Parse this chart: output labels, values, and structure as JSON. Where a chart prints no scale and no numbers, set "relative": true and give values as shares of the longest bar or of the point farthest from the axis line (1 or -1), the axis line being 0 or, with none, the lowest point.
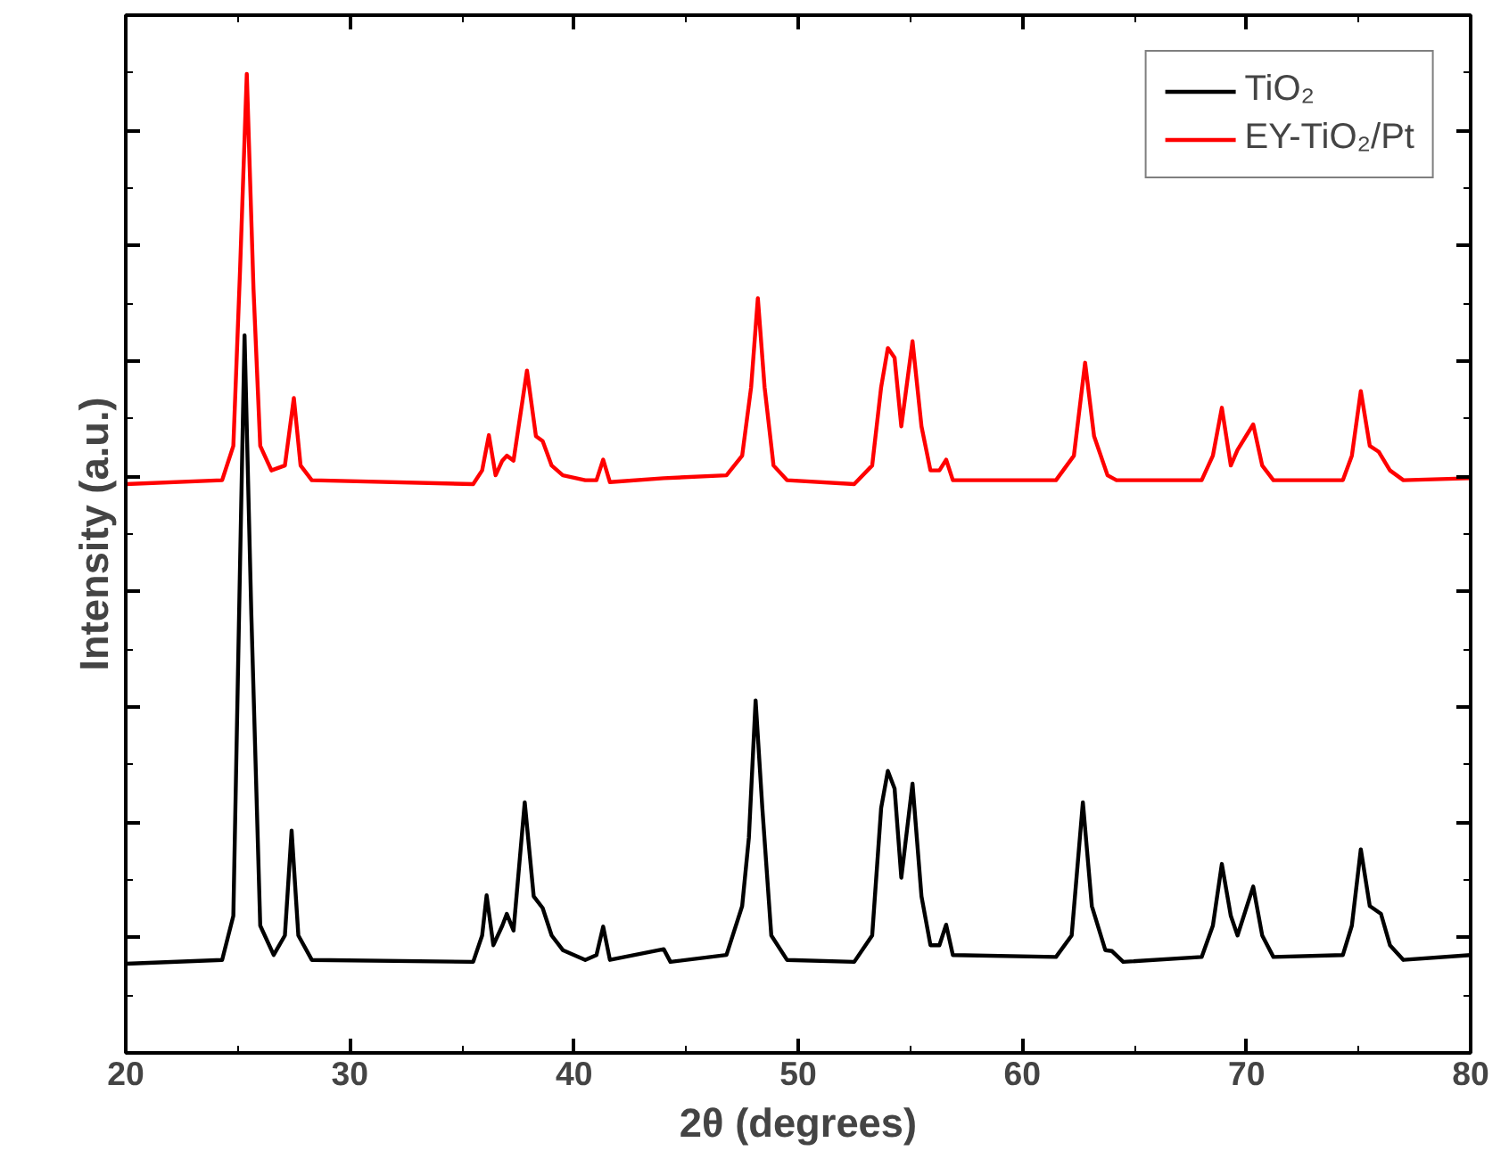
{
  "chart_data": {
    "type": "line",
    "relative": true,
    "xlabel": "2θ (degrees)",
    "ylabel": "Intensity (a.u.)",
    "xlim": [
      20,
      80
    ],
    "xticks": [
      20,
      30,
      40,
      50,
      60,
      70,
      80
    ],
    "tick_labels": "x",
    "grid": false,
    "legend": "top right",
    "marker": "none",
    "line_style": "solid",
    "series": [
      {
        "name": "TiO₂",
        "color": "#000000",
        "x": [
          20,
          24.3,
          24.8,
          25.1,
          25.3,
          25.6,
          26.0,
          26.6,
          27.1,
          27.4,
          27.7,
          28.3,
          35.5,
          35.9,
          36.1,
          36.4,
          36.8,
          37.0,
          37.3,
          37.8,
          38.2,
          38.6,
          39.0,
          39.5,
          40.5,
          41.0,
          41.3,
          41.6,
          44.0,
          44.3,
          46.8,
          47.5,
          47.8,
          48.1,
          48.4,
          48.8,
          49.5,
          52.5,
          53.3,
          53.7,
          54.0,
          54.3,
          54.6,
          55.1,
          55.5,
          55.9,
          56.3,
          56.6,
          56.9,
          61.5,
          62.2,
          62.7,
          63.1,
          63.7,
          64.0,
          64.5,
          68.0,
          68.5,
          68.9,
          69.3,
          69.6,
          70.3,
          70.7,
          71.2,
          74.3,
          74.7,
          75.1,
          75.5,
          76.0,
          76.4,
          77.0,
          80
        ],
        "values": [
          0.091,
          0.095,
          0.14,
          0.5,
          0.733,
          0.45,
          0.13,
          0.1,
          0.12,
          0.227,
          0.12,
          0.095,
          0.093,
          0.12,
          0.161,
          0.11,
          0.13,
          0.142,
          0.125,
          0.256,
          0.16,
          0.148,
          0.12,
          0.105,
          0.095,
          0.1,
          0.129,
          0.095,
          0.106,
          0.093,
          0.1,
          0.15,
          0.22,
          0.36,
          0.25,
          0.12,
          0.095,
          0.093,
          0.12,
          0.25,
          0.288,
          0.27,
          0.179,
          0.275,
          0.16,
          0.11,
          0.11,
          0.131,
          0.1,
          0.098,
          0.12,
          0.256,
          0.15,
          0.105,
          0.104,
          0.093,
          0.098,
          0.13,
          0.193,
          0.14,
          0.12,
          0.17,
          0.12,
          0.098,
          0.1,
          0.13,
          0.208,
          0.15,
          0.142,
          0.11,
          0.095,
          0.1
        ]
      },
      {
        "name": "EY-TiO₂/Pt",
        "color": "#ff0000",
        "x": [
          20,
          24.3,
          24.8,
          25.1,
          25.4,
          25.7,
          26.0,
          26.5,
          27.1,
          27.5,
          27.8,
          28.3,
          35.5,
          35.9,
          36.2,
          36.5,
          36.8,
          37.0,
          37.3,
          37.9,
          38.3,
          38.6,
          39.0,
          39.5,
          40.5,
          41.0,
          41.3,
          41.6,
          44.0,
          46.8,
          47.5,
          47.9,
          48.2,
          48.5,
          48.9,
          49.5,
          52.5,
          53.3,
          53.7,
          54.0,
          54.3,
          54.6,
          55.1,
          55.5,
          55.9,
          56.3,
          56.6,
          56.9,
          61.5,
          62.3,
          62.8,
          63.2,
          63.8,
          64.2,
          68.0,
          68.5,
          68.9,
          69.3,
          69.6,
          70.3,
          70.7,
          71.2,
          74.3,
          74.7,
          75.1,
          75.5,
          75.9,
          76.4,
          77.0,
          80
        ],
        "values": [
          0.581,
          0.585,
          0.62,
          0.8,
          1.0,
          0.78,
          0.62,
          0.595,
          0.6,
          0.669,
          0.6,
          0.585,
          0.581,
          0.595,
          0.631,
          0.59,
          0.605,
          0.61,
          0.605,
          0.697,
          0.63,
          0.625,
          0.6,
          0.59,
          0.585,
          0.585,
          0.606,
          0.583,
          0.587,
          0.59,
          0.61,
          0.68,
          0.771,
          0.68,
          0.6,
          0.585,
          0.581,
          0.6,
          0.68,
          0.72,
          0.71,
          0.64,
          0.727,
          0.64,
          0.595,
          0.595,
          0.606,
          0.585,
          0.585,
          0.61,
          0.705,
          0.63,
          0.59,
          0.585,
          0.585,
          0.61,
          0.659,
          0.6,
          0.616,
          0.642,
          0.6,
          0.585,
          0.585,
          0.61,
          0.676,
          0.62,
          0.614,
          0.595,
          0.585,
          0.587
        ]
      }
    ]
  }
}
